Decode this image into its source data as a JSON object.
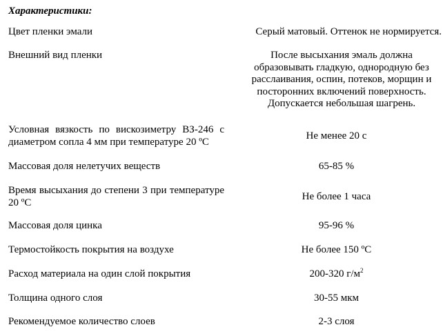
{
  "title": "Характеристики:",
  "rows": [
    {
      "label": "Цвет пленки эмали",
      "value": "Серый матовый. Оттенок не нормируется."
    },
    {
      "label": "Внешний вид пленки",
      "value": "После высыхания эмаль должна образовывать гладкую, однородную без расслаивания, оспин, потеков, морщин и посторонних включений поверхность. Допускается небольшая шагрень."
    },
    {
      "label": "Условная вязкость по вискозиметру ВЗ-246 с диаметром сопла 4 мм при температуре 20 ºС",
      "value": "Не менее 20 с"
    },
    {
      "label": "Массовая доля нелетучих веществ",
      "value": "65-85 %"
    },
    {
      "label": "Время высыхания до степени 3 при температуре 20 ºС",
      "value": "Не более 1 часа"
    },
    {
      "label": "Массовая доля цинка",
      "value": "95-96 %"
    },
    {
      "label": "Термостойкость покрытия на воздухе",
      "value": "Не более 150 ºС"
    },
    {
      "label": "Расход материала на один слой покрытия",
      "value": "200-320 г/м",
      "value_sup": "2"
    },
    {
      "label": "Толщина одного слоя",
      "value": "30-55 мкм"
    },
    {
      "label": "Рекомендуемое количество слоев",
      "value": "2-3 слоя"
    }
  ]
}
